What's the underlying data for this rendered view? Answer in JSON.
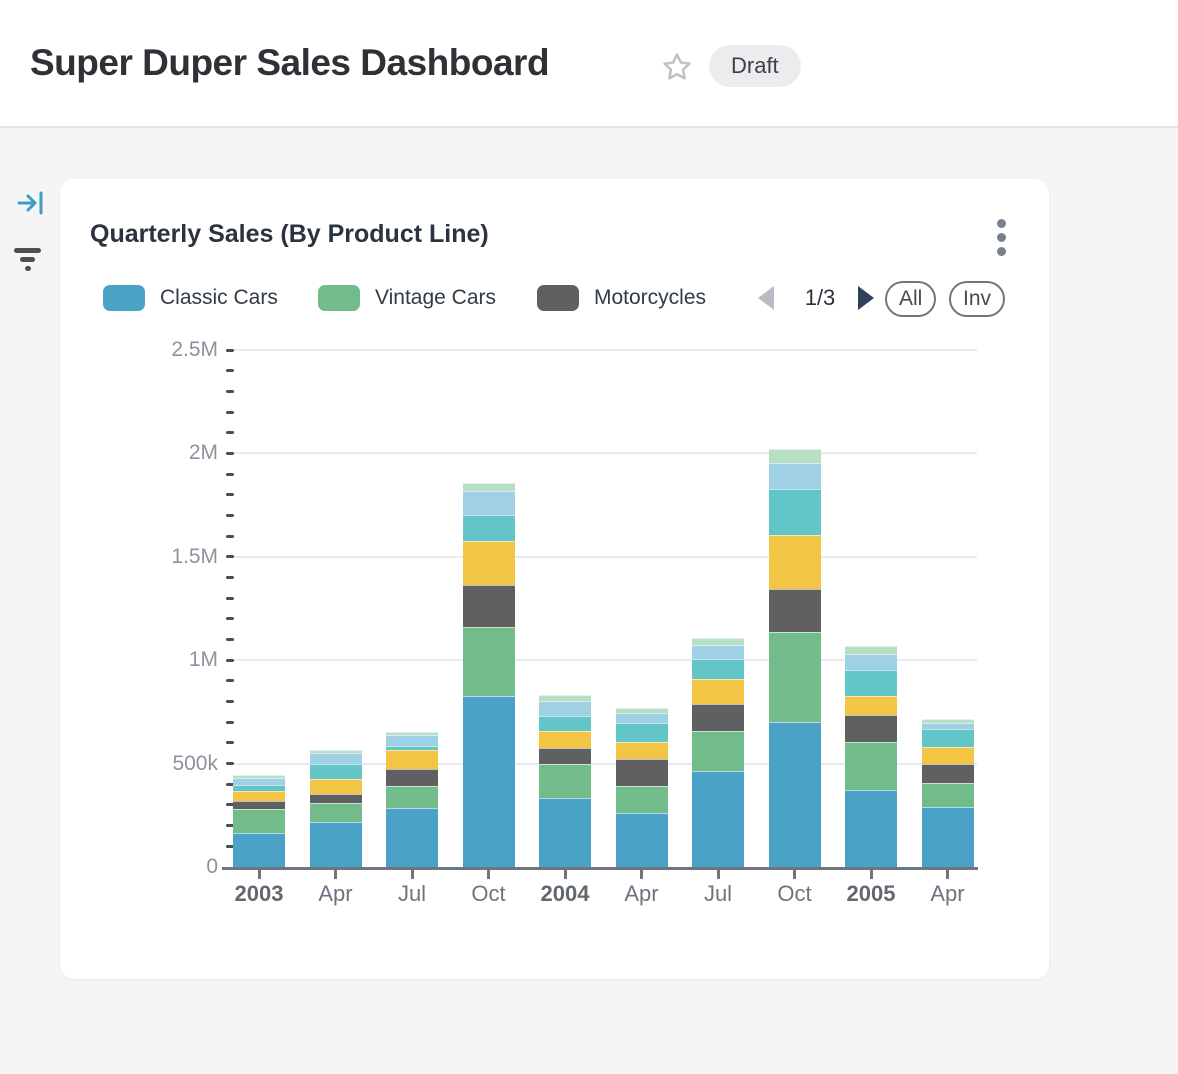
{
  "header": {
    "title": "Super Duper Sales Dashboard",
    "badge": "Draft"
  },
  "card": {
    "title": "Quarterly Sales (By Product Line)",
    "legend": {
      "pager_text": "1/3",
      "all_button": "All",
      "invert_button": "Inv"
    }
  },
  "chart_data": {
    "type": "bar",
    "stacked": true,
    "title": "Quarterly Sales (By Product Line)",
    "categories": [
      "2003",
      "Apr",
      "Jul",
      "Oct",
      "2004",
      "Apr",
      "Jul",
      "Oct",
      "2005",
      "Apr"
    ],
    "series": [
      {
        "name": "Classic Cars",
        "color": "#4aa2c6",
        "in_legend": true,
        "values": [
          165000,
          216000,
          283000,
          827000,
          336000,
          261000,
          466000,
          700000,
          371000,
          290000
        ]
      },
      {
        "name": "Vintage Cars",
        "color": "#72bc8b",
        "in_legend": true,
        "values": [
          115000,
          95000,
          108000,
          333000,
          160000,
          131000,
          193000,
          436000,
          234000,
          116000
        ]
      },
      {
        "name": "Motorcycles",
        "color": "#606062",
        "in_legend": true,
        "values": [
          38000,
          40000,
          83000,
          202000,
          80000,
          128000,
          129000,
          207000,
          129000,
          94000
        ]
      },
      {
        "name": "",
        "color_name": "yellow",
        "color": "#f2c644",
        "in_legend": false,
        "values": [
          50000,
          75000,
          92000,
          214000,
          80000,
          83000,
          120000,
          263000,
          92000,
          81000
        ]
      },
      {
        "name": "",
        "color_name": "teal",
        "color": "#62c5c7",
        "in_legend": false,
        "values": [
          28000,
          70000,
          19000,
          125000,
          75000,
          93000,
          100000,
          221000,
          129000,
          84000
        ]
      },
      {
        "name": "",
        "color_name": "light-blue",
        "color": "#a0d0e4",
        "in_legend": false,
        "values": [
          35000,
          57000,
          52000,
          118000,
          74000,
          51000,
          64000,
          129000,
          77000,
          32000
        ]
      },
      {
        "name": "",
        "color_name": "pale-green",
        "color": "#b7dfc3",
        "in_legend": false,
        "values": [
          14000,
          13000,
          16000,
          37000,
          27000,
          21000,
          37000,
          64000,
          35000,
          21000
        ]
      }
    ],
    "y_axis": {
      "min": 0,
      "max": 2500000,
      "major_interval": 500000,
      "minor_interval": 100000,
      "major_tick_labels": [
        "0",
        "500k",
        "1M",
        "1.5M",
        "2M",
        "2.5M"
      ]
    },
    "x_axis": {
      "bold_labels": [
        "2003",
        "2004",
        "2005"
      ]
    },
    "grid": true,
    "legend_position": "top",
    "legend_pagination": "1/3"
  }
}
